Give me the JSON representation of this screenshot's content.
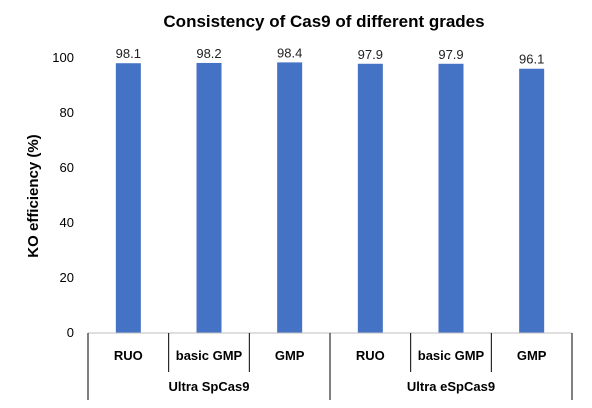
{
  "chart_data": {
    "type": "bar",
    "title": "Consistency of Cas9 of different grades",
    "ylabel": "KO efficiency (%)",
    "xlabel": "",
    "ylim": [
      0,
      100
    ],
    "yticks": [
      0,
      20,
      40,
      60,
      80,
      100
    ],
    "grid": false,
    "legend": "none",
    "bar_color": "#4472C4",
    "categories": [
      "RUO",
      "basic GMP",
      "GMP",
      "RUO",
      "basic GMP",
      "GMP"
    ],
    "groups": [
      {
        "label": "Ultra SpCas9",
        "span": 3
      },
      {
        "label": "Ultra eSpCas9",
        "span": 3
      }
    ],
    "values": [
      98.1,
      98.2,
      98.4,
      97.9,
      97.9,
      96.1
    ],
    "data_labels": [
      "98.1",
      "98.2",
      "98.4",
      "97.9",
      "97.9",
      "96.1"
    ]
  }
}
